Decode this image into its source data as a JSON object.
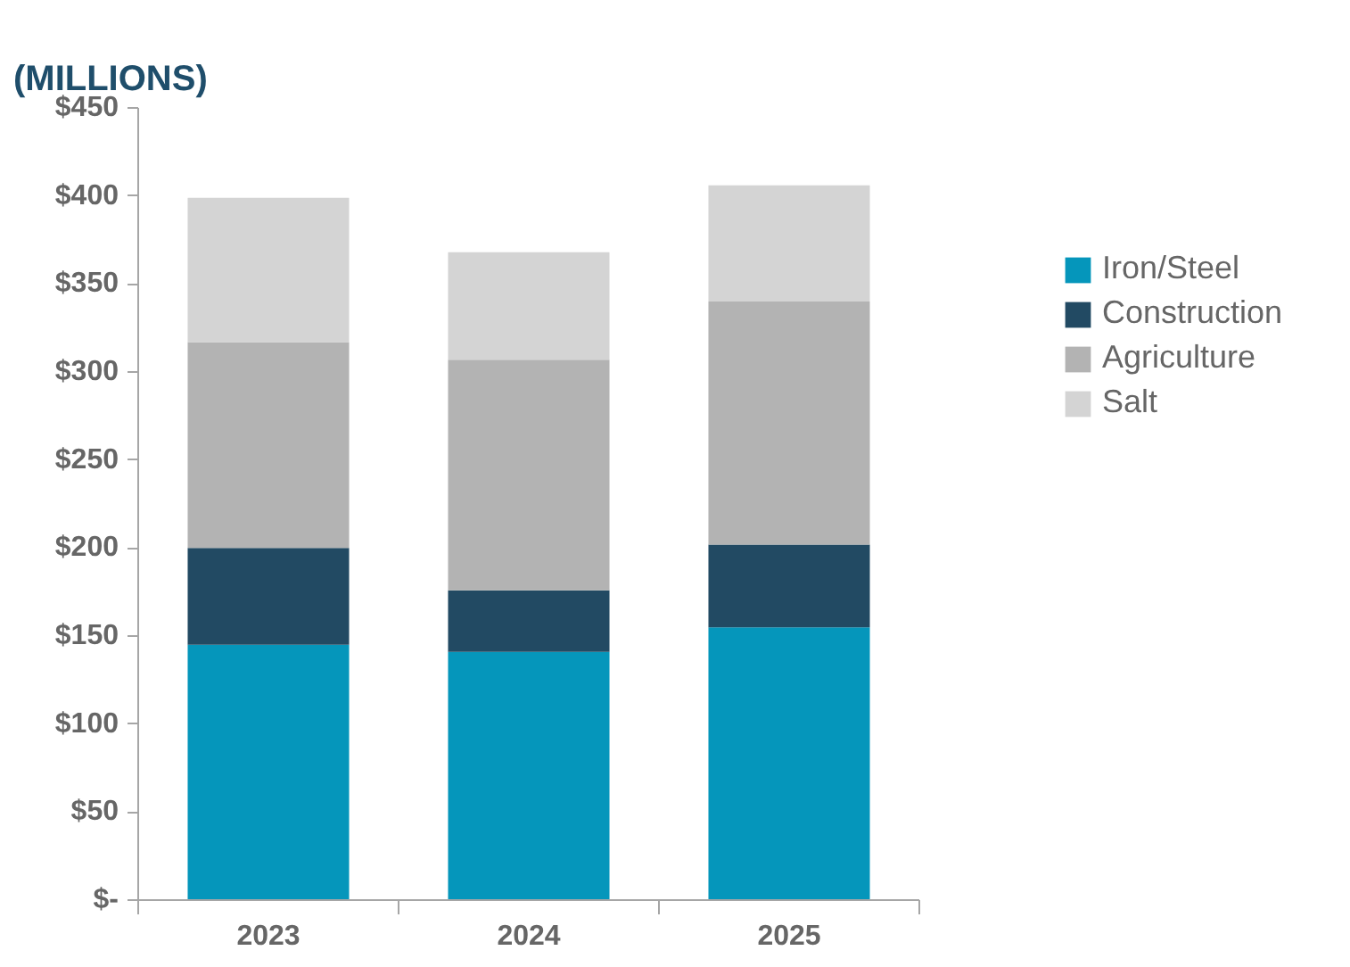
{
  "chart_data": {
    "type": "bar",
    "title": "(MILLIONS)",
    "stacked": true,
    "categories": [
      "2023",
      "2024",
      "2025"
    ],
    "series": [
      {
        "name": "Iron/Steel",
        "color": "#0596bb",
        "values": [
          145,
          141,
          155
        ]
      },
      {
        "name": "Construction",
        "color": "#224a63",
        "values": [
          55,
          35,
          47
        ]
      },
      {
        "name": "Agriculture",
        "color": "#b3b3b3",
        "values": [
          117,
          131,
          138
        ]
      },
      {
        "name": "Salt",
        "color": "#d4d4d4",
        "values": [
          82,
          61,
          66
        ]
      }
    ],
    "ylim": [
      0,
      450
    ],
    "yticks": [
      {
        "value": 0,
        "label": "$-"
      },
      {
        "value": 50,
        "label": "$50"
      },
      {
        "value": 100,
        "label": "$100"
      },
      {
        "value": 150,
        "label": "$150"
      },
      {
        "value": 200,
        "label": "$200"
      },
      {
        "value": 250,
        "label": "$250"
      },
      {
        "value": 300,
        "label": "$300"
      },
      {
        "value": 350,
        "label": "$350"
      },
      {
        "value": 400,
        "label": "$400"
      },
      {
        "value": 450,
        "label": "$450"
      }
    ],
    "grid": false,
    "legend": "top right"
  }
}
